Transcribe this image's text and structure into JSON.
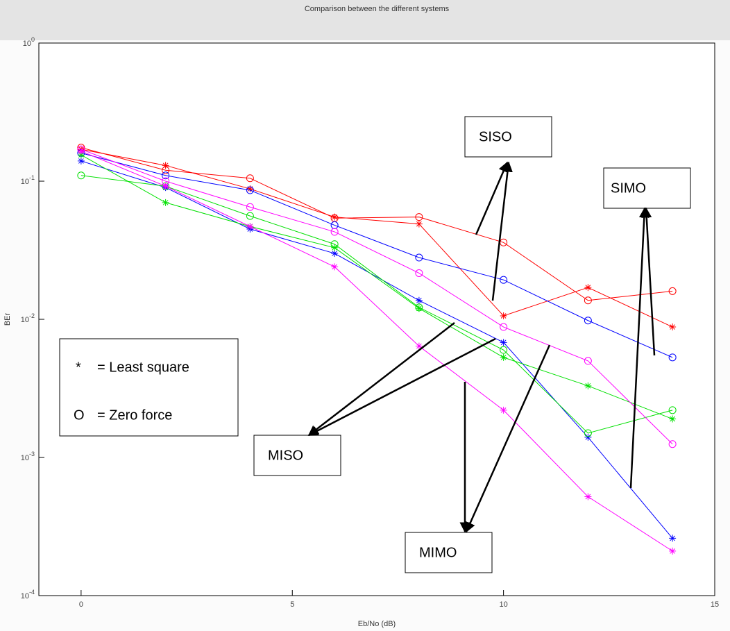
{
  "chart_data": {
    "type": "line",
    "title": "Comparison between the different systems",
    "xlabel": "Eb/No (dB)",
    "ylabel": "BEr",
    "x": [
      0,
      2,
      4,
      6,
      8,
      10,
      12,
      14
    ],
    "xlim": [
      -1,
      15
    ],
    "xticks": [
      0,
      5,
      10,
      15
    ],
    "ylim": [
      0.0001,
      1
    ],
    "log_y": true,
    "yticks": [
      {
        "value": 0.0001,
        "label": "10^-4"
      },
      {
        "value": 0.001,
        "label": "10^-3"
      },
      {
        "value": 0.01,
        "label": "10^-2"
      },
      {
        "value": 0.1,
        "label": "10^-1"
      },
      {
        "value": 1,
        "label": "10^0"
      }
    ],
    "series": [
      {
        "color": "#ff0000",
        "marker": "*",
        "values": [
          0.17,
          0.13,
          0.088,
          0.055,
          0.049,
          0.0106,
          0.017,
          0.0088
        ]
      },
      {
        "color": "#ff0000",
        "marker": "o",
        "values": [
          0.175,
          0.12,
          0.105,
          0.054,
          0.055,
          0.036,
          0.0137,
          0.016
        ]
      },
      {
        "color": "#0000ff",
        "marker": "*",
        "values": [
          0.14,
          0.09,
          0.045,
          0.03,
          0.0137,
          0.0068,
          0.0014,
          0.00026
        ]
      },
      {
        "color": "#0000ff",
        "marker": "o",
        "values": [
          0.16,
          0.11,
          0.086,
          0.048,
          0.028,
          0.0193,
          0.0098,
          0.0053
        ]
      },
      {
        "color": "#00e000",
        "marker": "*",
        "values": [
          0.155,
          0.07,
          0.047,
          0.033,
          0.012,
          0.0053,
          0.0033,
          0.0019
        ]
      },
      {
        "color": "#00e000",
        "marker": "o",
        "values": [
          0.11,
          0.092,
          0.056,
          0.035,
          0.0122,
          0.006,
          0.0015,
          0.0022
        ]
      },
      {
        "color": "#ff00ff",
        "marker": "*",
        "values": [
          0.165,
          0.092,
          0.047,
          0.024,
          0.0064,
          0.0022,
          0.00052,
          0.00021
        ]
      },
      {
        "color": "#ff00ff",
        "marker": "o",
        "values": [
          0.17,
          0.1,
          0.065,
          0.043,
          0.0216,
          0.0088,
          0.005,
          0.00125
        ]
      }
    ],
    "annotations": [
      "SISO",
      "SIMO",
      "MISO",
      "MIMO",
      "*",
      "= Least square",
      "O",
      "= Zero force"
    ]
  }
}
